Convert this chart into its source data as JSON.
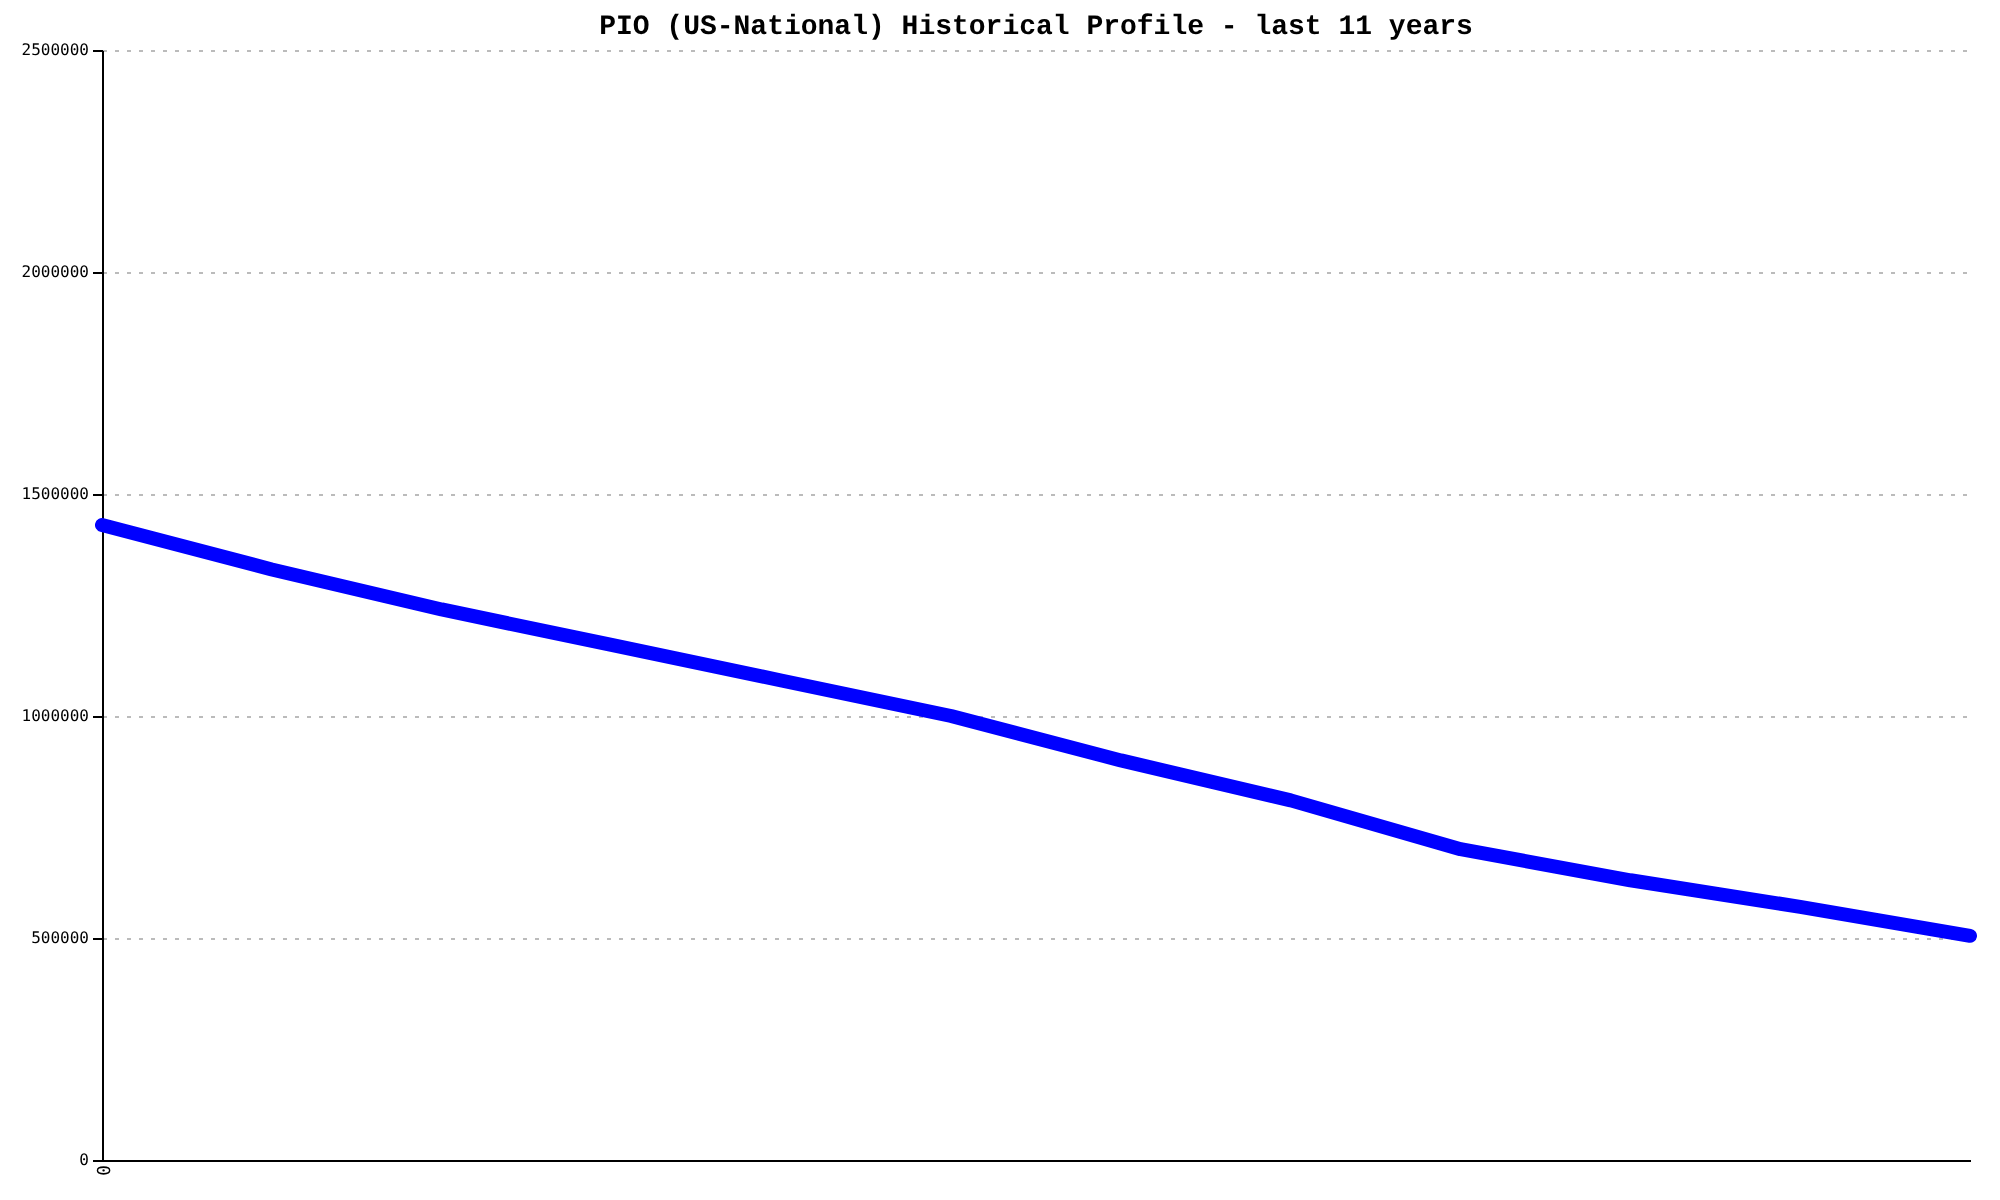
{
  "chart_data": {
    "type": "line",
    "title": "PIO (US-National) Historical Profile - last 11 years",
    "categories": [
      "0",
      null,
      null,
      null,
      null,
      null,
      null,
      null,
      null,
      null,
      null,
      null
    ],
    "series": [
      {
        "color": "#0000ff",
        "values": [
          1430000,
          1330000,
          1240000,
          1160000,
          1080000,
          1000000,
          900000,
          810000,
          700000,
          630000,
          570000,
          505000
        ]
      }
    ],
    "ylim": [
      0,
      2500000
    ],
    "yticks": [
      0,
      500000,
      1000000,
      1500000,
      2000000,
      2500000
    ],
    "grid": "y",
    "line_style": "solid",
    "legend": false
  }
}
